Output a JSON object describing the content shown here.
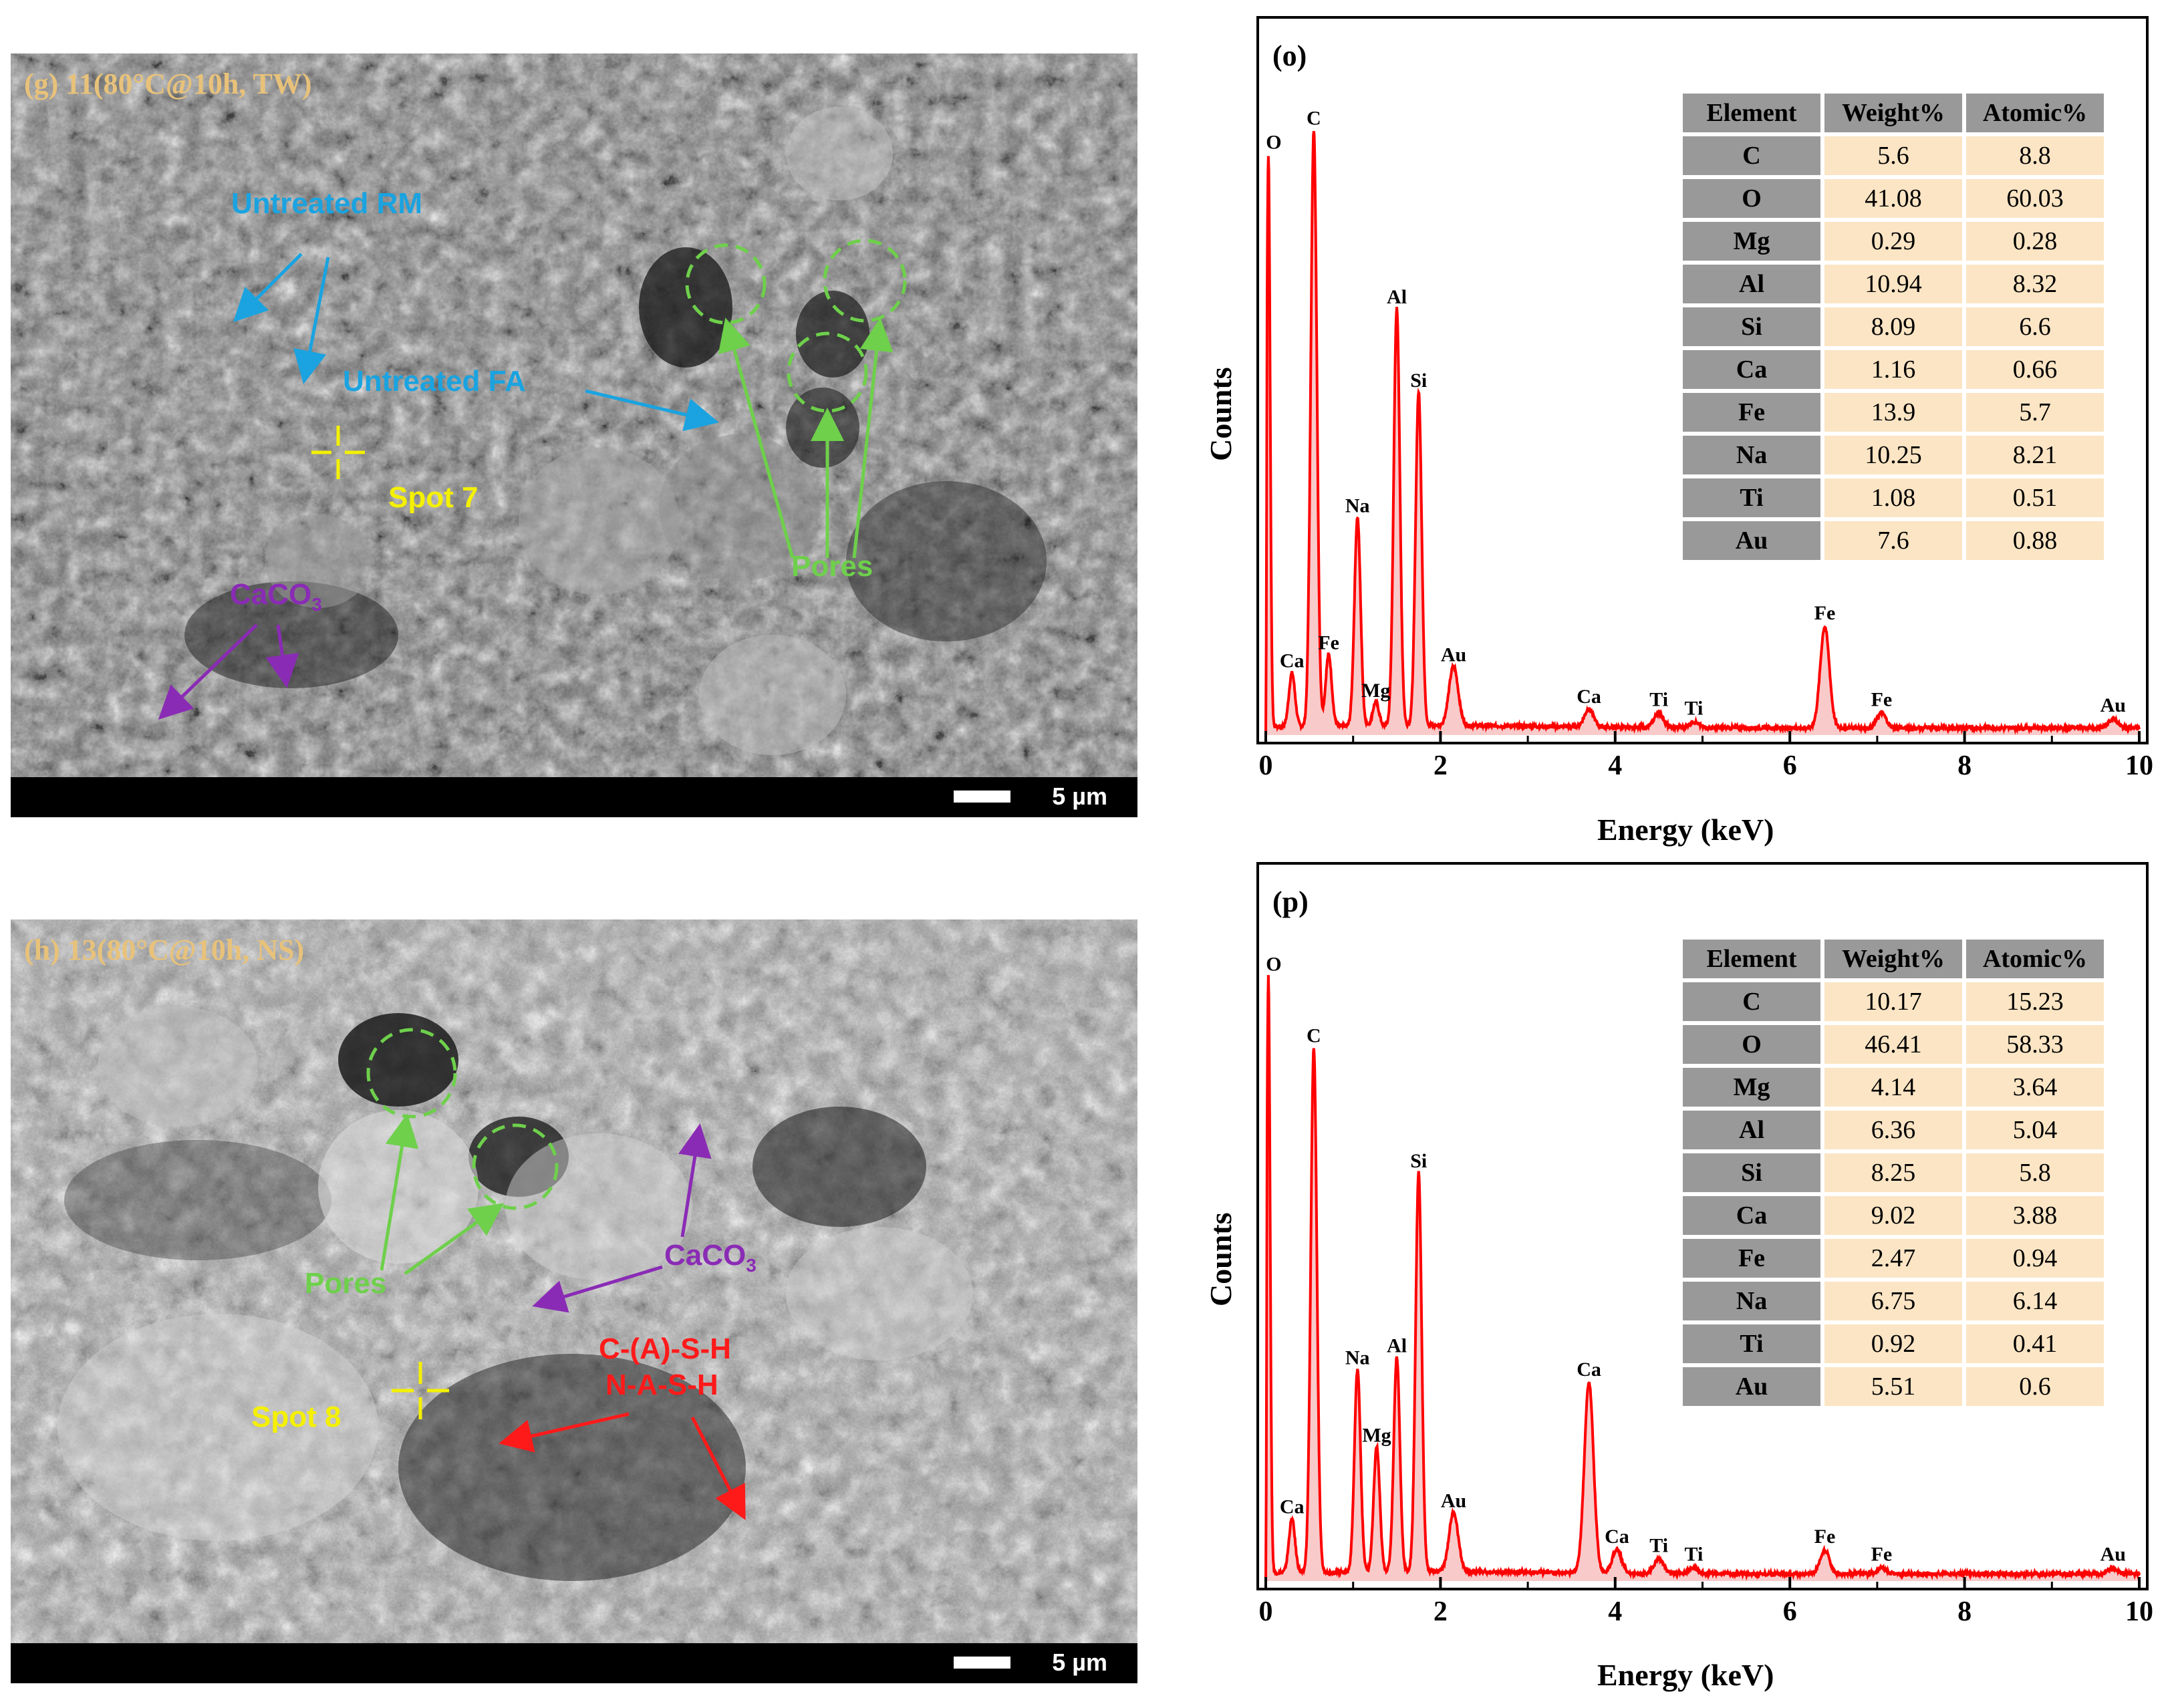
{
  "sem_g": {
    "title": "(g) 11(80°C@10h, TW)",
    "scale": "5 µm",
    "annotations": {
      "untreated_rm": "Untreated RM",
      "untreated_fa": "Untreated FA",
      "spot": "Spot 7",
      "pores": "Pores",
      "caco3": "CaCO",
      "caco3_sub": "3"
    },
    "colors": {
      "rm": "#1aa3e0",
      "fa": "#1aa3e0",
      "spot": "#f4f000",
      "pores": "#6ed04b",
      "caco3": "#8a2bb5"
    }
  },
  "sem_h": {
    "title": "(h) 13(80°C@10h, NS)",
    "scale": "5 µm",
    "annotations": {
      "pores": "Pores",
      "caco3": "CaCO",
      "caco3_sub": "3",
      "spot": "Spot 8",
      "gel1": "C-(A)-S-H",
      "gel2": "N-A-S-H"
    },
    "colors": {
      "pores": "#6ed04b",
      "caco3": "#8a2bb5",
      "spot": "#f4f000",
      "gel": "#ff1a1a"
    }
  },
  "eds_o": {
    "label": "(o)",
    "ylabel": "Counts",
    "xlabel": "Energy (keV)",
    "table": {
      "headers": [
        "Element",
        "Weight%",
        "Atomic%"
      ],
      "rows": [
        [
          "C",
          "5.6",
          "8.8"
        ],
        [
          "O",
          "41.08",
          "60.03"
        ],
        [
          "Mg",
          "0.29",
          "0.28"
        ],
        [
          "Al",
          "10.94",
          "8.32"
        ],
        [
          "Si",
          "8.09",
          "6.6"
        ],
        [
          "Ca",
          "1.16",
          "0.66"
        ],
        [
          "Fe",
          "13.9",
          "5.7"
        ],
        [
          "Na",
          "10.25",
          "8.21"
        ],
        [
          "Ti",
          "1.08",
          "0.51"
        ],
        [
          "Au",
          "7.6",
          "0.88"
        ]
      ]
    }
  },
  "eds_p": {
    "label": "(p)",
    "ylabel": "Counts",
    "xlabel": "Energy (keV)",
    "table": {
      "headers": [
        "Element",
        "Weight%",
        "Atomic%"
      ],
      "rows": [
        [
          "C",
          "10.17",
          "15.23"
        ],
        [
          "O",
          "46.41",
          "58.33"
        ],
        [
          "Mg",
          "4.14",
          "3.64"
        ],
        [
          "Al",
          "6.36",
          "5.04"
        ],
        [
          "Si",
          "8.25",
          "5.8"
        ],
        [
          "Ca",
          "9.02",
          "3.88"
        ],
        [
          "Fe",
          "2.47",
          "0.94"
        ],
        [
          "Na",
          "6.75",
          "6.14"
        ],
        [
          "Ti",
          "0.92",
          "0.41"
        ],
        [
          "Au",
          "5.51",
          "0.6"
        ]
      ]
    }
  },
  "chart_data": [
    {
      "type": "line",
      "xlim": [
        0,
        10
      ],
      "x_ticks": [
        "0",
        "2",
        "4",
        "6",
        "8",
        "10"
      ],
      "peaks": [
        {
          "label": "O",
          "x": 0.03,
          "y": 0.96
        },
        {
          "label": "Ca",
          "x": 0.3,
          "y": 0.09
        },
        {
          "label": "C",
          "x": 0.55,
          "y": 1.0
        },
        {
          "label": "Fe",
          "x": 0.72,
          "y": 0.12
        },
        {
          "label": "Na",
          "x": 1.05,
          "y": 0.35
        },
        {
          "label": "Mg",
          "x": 1.26,
          "y": 0.04
        },
        {
          "label": "Al",
          "x": 1.5,
          "y": 0.7
        },
        {
          "label": "Si",
          "x": 1.75,
          "y": 0.56
        },
        {
          "label": "Au",
          "x": 2.15,
          "y": 0.1
        },
        {
          "label": "Ca",
          "x": 3.7,
          "y": 0.03
        },
        {
          "label": "Ti",
          "x": 4.5,
          "y": 0.025
        },
        {
          "label": "Ti",
          "x": 4.9,
          "y": 0.01
        },
        {
          "label": "Fe",
          "x": 6.4,
          "y": 0.17
        },
        {
          "label": "Fe",
          "x": 7.05,
          "y": 0.025
        },
        {
          "label": "Au",
          "x": 9.7,
          "y": 0.015
        }
      ]
    },
    {
      "type": "line",
      "xlim": [
        0,
        10
      ],
      "x_ticks": [
        "0",
        "2",
        "4",
        "6",
        "8",
        "10"
      ],
      "peaks": [
        {
          "label": "O",
          "x": 0.03,
          "y": 1.0
        },
        {
          "label": "Ca",
          "x": 0.3,
          "y": 0.09
        },
        {
          "label": "C",
          "x": 0.55,
          "y": 0.88
        },
        {
          "label": "Na",
          "x": 1.05,
          "y": 0.34
        },
        {
          "label": "Mg",
          "x": 1.27,
          "y": 0.21
        },
        {
          "label": "Al",
          "x": 1.5,
          "y": 0.36
        },
        {
          "label": "Si",
          "x": 1.75,
          "y": 0.67
        },
        {
          "label": "Au",
          "x": 2.15,
          "y": 0.1
        },
        {
          "label": "Ca",
          "x": 3.7,
          "y": 0.32
        },
        {
          "label": "Ca",
          "x": 4.02,
          "y": 0.04
        },
        {
          "label": "Ti",
          "x": 4.5,
          "y": 0.025
        },
        {
          "label": "Ti",
          "x": 4.9,
          "y": 0.01
        },
        {
          "label": "Fe",
          "x": 6.4,
          "y": 0.04
        },
        {
          "label": "Fe",
          "x": 7.05,
          "y": 0.01
        },
        {
          "label": "Au",
          "x": 9.7,
          "y": 0.01
        }
      ]
    }
  ]
}
